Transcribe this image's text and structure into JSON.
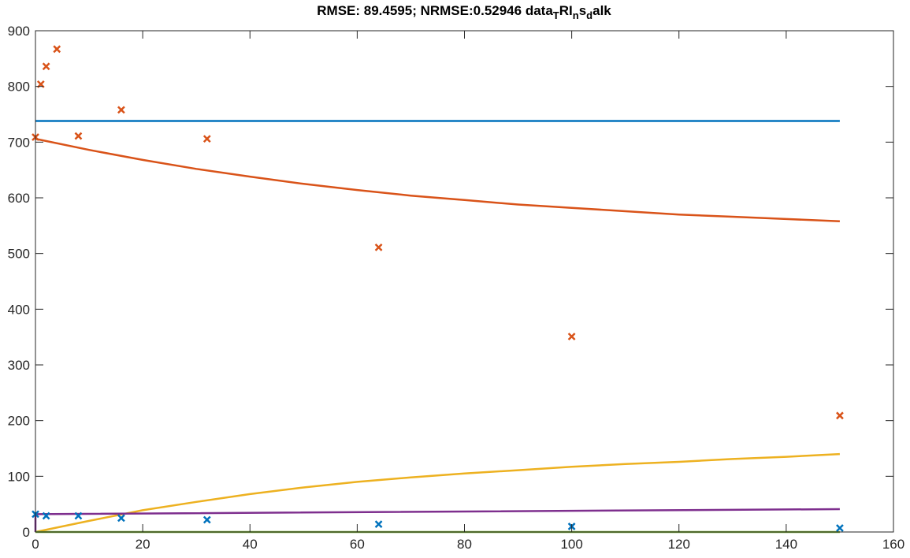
{
  "chart_data": {
    "type": "line",
    "title": {
      "prefix": "RMSE: 89.4595; NRMSE:0.52946 data",
      "parts": [
        {
          "text": "T",
          "sub": true
        },
        {
          "text": "RI",
          "sub": false
        },
        {
          "text": "n",
          "sub": true
        },
        {
          "text": "s",
          "sub": false
        },
        {
          "text": "d",
          "sub": true
        },
        {
          "text": "alk",
          "sub": false
        }
      ]
    },
    "xlabel": "",
    "ylabel": "",
    "xlim": [
      0,
      160
    ],
    "ylim": [
      0,
      900
    ],
    "xticks": [
      0,
      20,
      40,
      60,
      80,
      100,
      120,
      140,
      160
    ],
    "yticks": [
      0,
      100,
      200,
      300,
      400,
      500,
      600,
      700,
      800,
      900
    ],
    "grid": false,
    "legend": "none",
    "series": [
      {
        "kind": "line",
        "color": "#0072BD",
        "x": [
          0,
          150
        ],
        "y": [
          738,
          738
        ]
      },
      {
        "kind": "line",
        "color": "#D95319",
        "x": [
          0,
          10,
          20,
          30,
          40,
          50,
          60,
          70,
          80,
          90,
          100,
          110,
          120,
          130,
          140,
          150
        ],
        "y": [
          706,
          686,
          668,
          652,
          638,
          625,
          614,
          604,
          596,
          588,
          582,
          576,
          570,
          566,
          562,
          558
        ]
      },
      {
        "kind": "line",
        "color": "#EDB120",
        "x": [
          0,
          10,
          20,
          30,
          40,
          50,
          60,
          70,
          80,
          90,
          100,
          110,
          120,
          130,
          140,
          150
        ],
        "y": [
          0,
          20,
          39,
          54,
          68,
          80,
          90,
          98,
          105,
          111,
          117,
          122,
          126,
          131,
          135,
          140
        ]
      },
      {
        "kind": "line",
        "color": "#7E2F8E",
        "x": [
          0,
          0,
          0.3,
          150
        ],
        "y": [
          0,
          31,
          32,
          41
        ]
      },
      {
        "kind": "line",
        "color": "#77AC30",
        "x": [
          0,
          150
        ],
        "y": [
          0,
          0
        ]
      },
      {
        "kind": "scatter",
        "marker": "x",
        "color": "#D95319",
        "x": [
          0,
          1,
          2,
          4,
          8,
          16,
          32,
          64,
          100,
          150
        ],
        "y": [
          709,
          804,
          836,
          867,
          711,
          758,
          706,
          511,
          351,
          209
        ]
      },
      {
        "kind": "scatter",
        "marker": "x",
        "color": "#0072BD",
        "x": [
          0,
          2,
          8,
          16,
          32,
          64,
          100,
          150
        ],
        "y": [
          32,
          29,
          29,
          25,
          22,
          14,
          10,
          7
        ]
      }
    ]
  }
}
